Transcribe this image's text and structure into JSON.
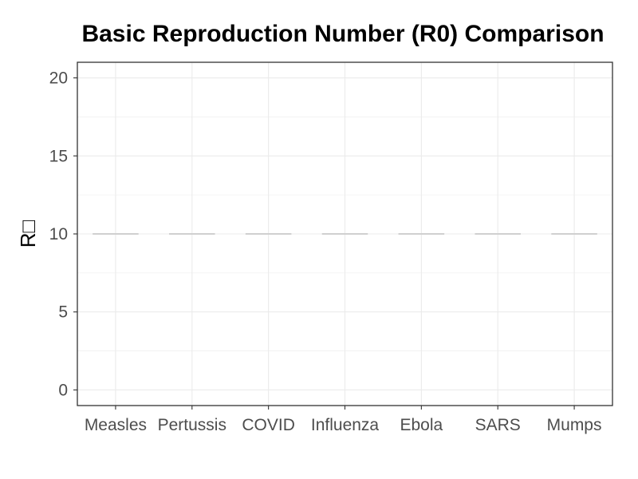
{
  "chart_data": {
    "type": "bar",
    "title": "Basic Reproduction Number (R0) Comparison",
    "xlabel": "",
    "ylabel": "R□",
    "categories": [
      "Measles",
      "Pertussis",
      "COVID",
      "Influenza",
      "Ebola",
      "SARS",
      "Mumps"
    ],
    "values": [
      10,
      10,
      10,
      10,
      10,
      10,
      10
    ],
    "ylim": [
      -1,
      21
    ],
    "yticks": [
      0,
      5,
      10,
      15,
      20
    ],
    "ytick_labels": [
      "0",
      "5",
      "10",
      "15",
      "20"
    ],
    "grid": true,
    "colors": {
      "mark": "#d0d0d0",
      "grid": "#ebebeb",
      "panel_border": "#333333"
    }
  }
}
